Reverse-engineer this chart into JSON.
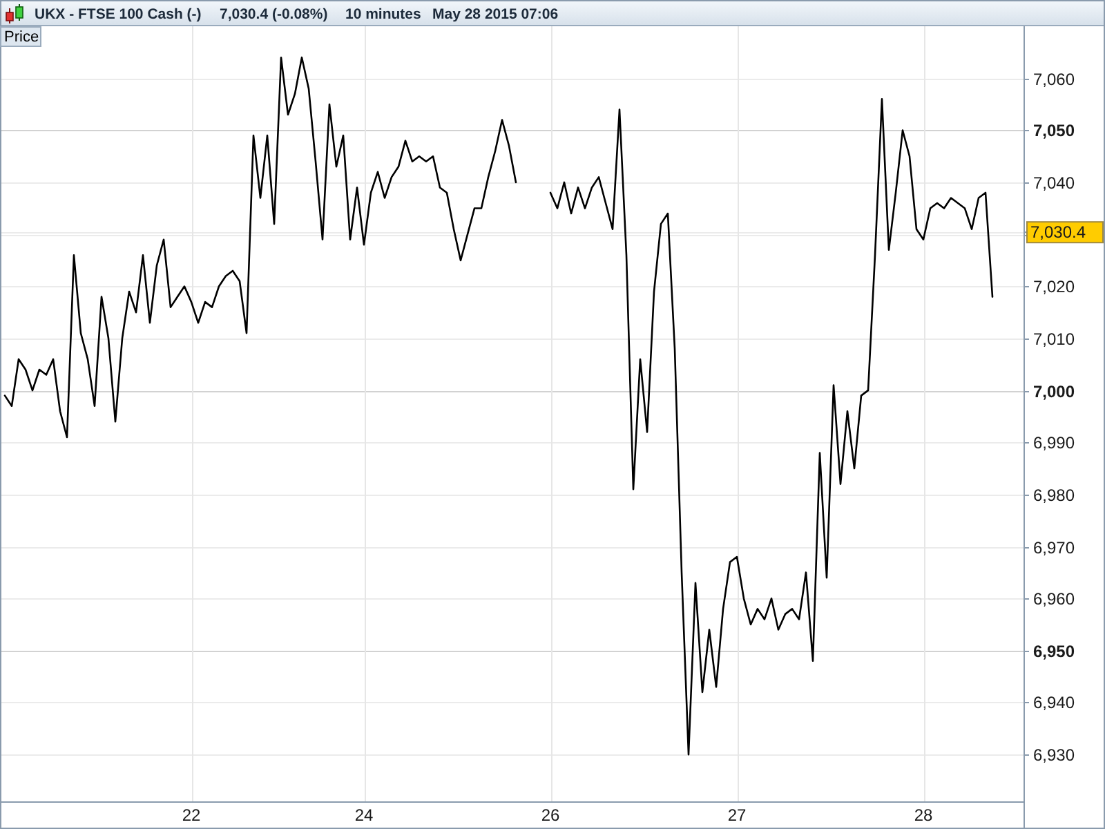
{
  "chart_data": {
    "type": "line",
    "title": "UKX - FTSE 100 Cash (-)",
    "subtitle": "7,030.4 (-0.08%)",
    "annotations": [
      "10 minutes",
      "May 28 2015 07:06"
    ],
    "categories": [
      null,
      null,
      null,
      null,
      null,
      null,
      null,
      null,
      null,
      null,
      null,
      null,
      null,
      null,
      null,
      null,
      null,
      null,
      null,
      null,
      null,
      null,
      null,
      null,
      null,
      null,
      null,
      "22",
      null,
      null,
      null,
      null,
      null,
      null,
      null,
      null,
      null,
      null,
      null,
      null,
      null,
      null,
      null,
      null,
      null,
      null,
      null,
      null,
      null,
      null,
      null,
      null,
      "24",
      null,
      null,
      null,
      null,
      null,
      null,
      null,
      null,
      null,
      null,
      null,
      null,
      null,
      null,
      null,
      null,
      null,
      null,
      null,
      null,
      null,
      null,
      null,
      null,
      null,
      null,
      "26",
      null,
      null,
      null,
      null,
      null,
      null,
      null,
      null,
      null,
      null,
      null,
      null,
      null,
      null,
      null,
      null,
      null,
      null,
      null,
      null,
      null,
      null,
      null,
      null,
      null,
      null,
      "27",
      null,
      null,
      null,
      null,
      null,
      null,
      null,
      null,
      null,
      null,
      null,
      null,
      null,
      null,
      null,
      null,
      null,
      null,
      null,
      null,
      null,
      null,
      null,
      null,
      null,
      null,
      "28",
      null,
      null,
      null,
      null,
      null,
      null,
      null,
      null,
      null,
      null
    ],
    "series": [
      {
        "name": "Price",
        "color": "#000000",
        "values": [
          6999,
          6997,
          7006,
          7004,
          7000,
          7004,
          7003,
          7006,
          6996,
          6991,
          7026,
          7011,
          7006,
          6997,
          7018,
          7010,
          6994,
          7010,
          7019,
          7015,
          7026,
          7013,
          7024,
          7029,
          7016,
          7018,
          7020,
          7017,
          7013,
          7017,
          7016,
          7020,
          7022,
          7023,
          7021,
          7011,
          7049,
          7037,
          7049,
          7032,
          7064,
          7053,
          7057,
          7064,
          7058,
          7044,
          7029,
          7055,
          7043,
          7049,
          7029,
          7039,
          7028,
          7038,
          7042,
          7037,
          7041,
          7043,
          7048,
          7044,
          7045,
          7044,
          7045,
          7039,
          7038,
          7031,
          7025,
          7030,
          7035,
          7035,
          7041,
          7046,
          7052,
          7047,
          7040,
          null,
          null,
          null,
          null,
          7038,
          7035,
          7040,
          7034,
          7039,
          7035,
          7039,
          7041,
          7036,
          7031,
          7054,
          7026,
          6981,
          7006,
          6992,
          7019,
          7032,
          7034,
          7008,
          6965,
          6930,
          6963,
          6942,
          6954,
          6943,
          6958,
          6967,
          6968,
          6960,
          6955,
          6958,
          6956,
          6960,
          6954,
          6957,
          6958,
          6956,
          6965,
          6948,
          6988,
          6964,
          7001,
          6982,
          6996,
          6985,
          6999,
          7000,
          7026,
          7056,
          7027,
          7038,
          7050,
          7045,
          7031,
          7029,
          7035,
          7036,
          7035,
          7037,
          7036,
          7035,
          7031,
          7037,
          7038,
          7018
        ]
      }
    ],
    "ylim": [
      6921,
      7070
    ],
    "yticks": [
      {
        "value": 6930,
        "label": "6,930"
      },
      {
        "value": 6940,
        "label": "6,940"
      },
      {
        "value": 6950,
        "label": "6,950"
      },
      {
        "value": 6960,
        "label": "6,960"
      },
      {
        "value": 6970,
        "label": "6,970"
      },
      {
        "value": 6980,
        "label": "6,980"
      },
      {
        "value": 6990,
        "label": "6,990"
      },
      {
        "value": 7000,
        "label": "7,000"
      },
      {
        "value": 7010,
        "label": "7,010"
      },
      {
        "value": 7020,
        "label": "7,020"
      },
      {
        "value": 7030,
        "label": null
      },
      {
        "value": 7030.4,
        "label": "7,030.4"
      },
      {
        "value": 7040,
        "label": "7,040"
      },
      {
        "value": 7050,
        "label": "7,050"
      },
      {
        "value": 7060,
        "label": "7,060"
      }
    ],
    "grid": true,
    "legend": "top left"
  }
}
